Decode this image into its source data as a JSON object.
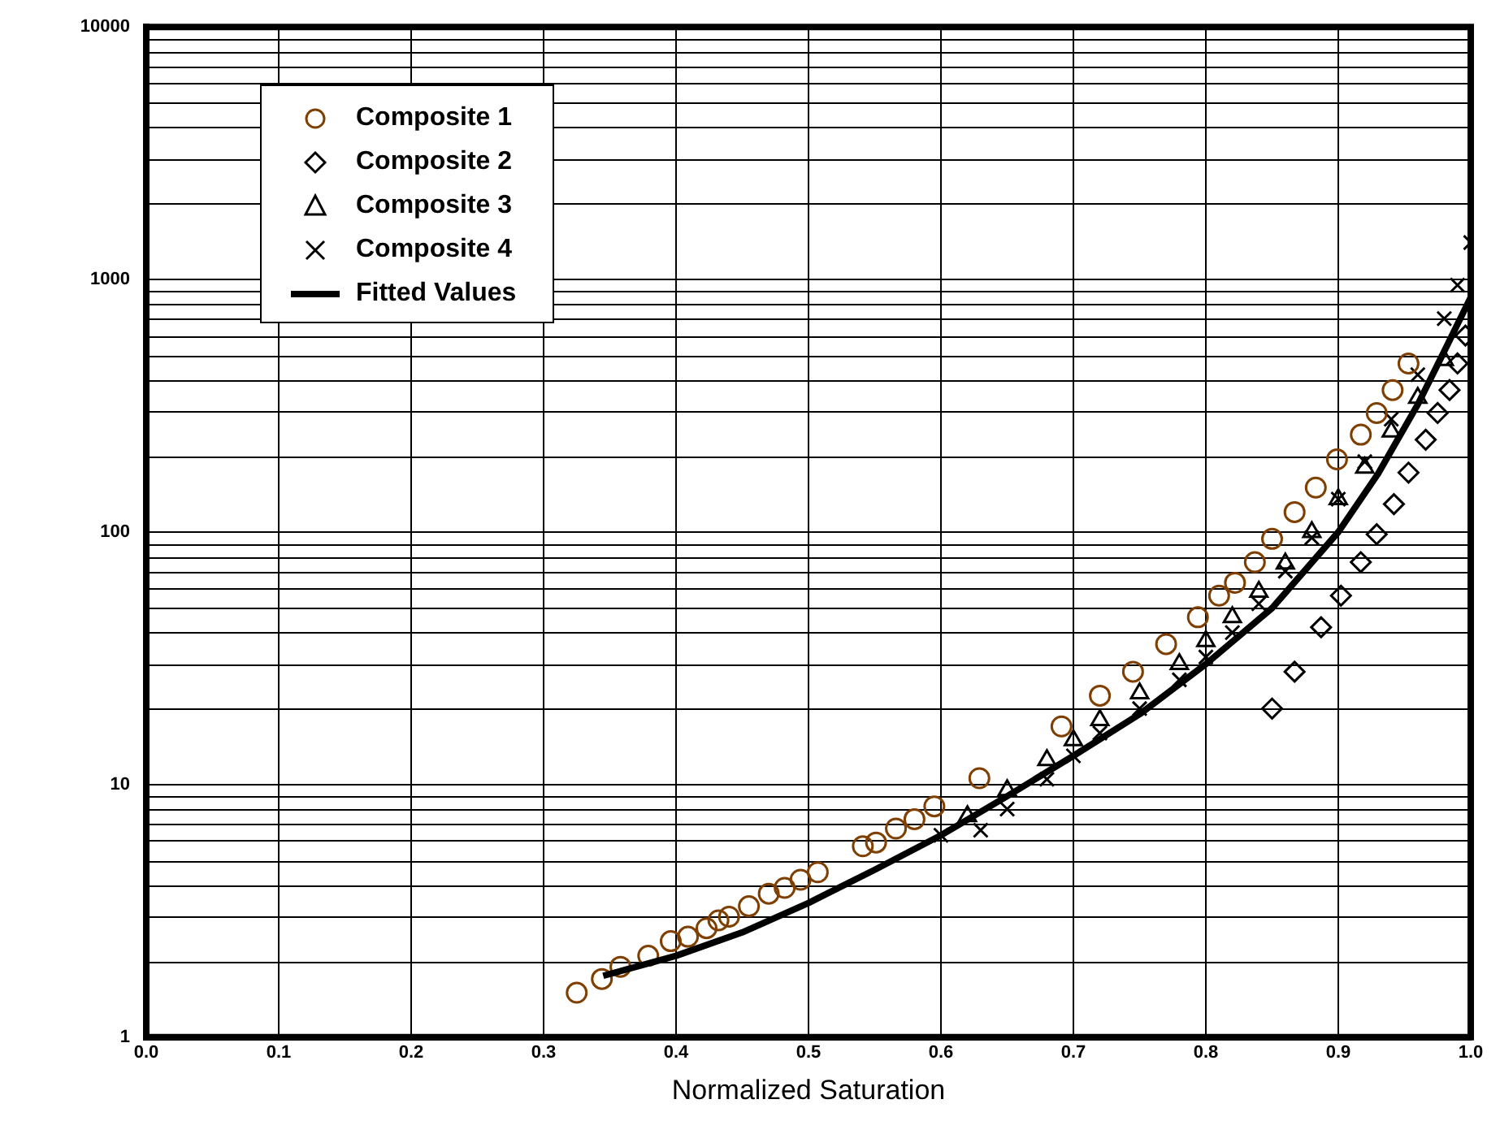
{
  "chart_data": {
    "type": "scatter",
    "xlabel": "Normalized Saturation",
    "log": "y",
    "grid": true,
    "legend": "top left",
    "xlim": [
      0,
      1
    ],
    "xticks": [
      {
        "value": 0,
        "label": "0.0"
      },
      {
        "value": 0.1,
        "label": "0.1"
      },
      {
        "value": 0.2,
        "label": "0.2"
      },
      {
        "value": 0.3,
        "label": "0.3"
      },
      {
        "value": 0.4,
        "label": "0.4"
      },
      {
        "value": 0.5,
        "label": "0.5"
      },
      {
        "value": 0.6,
        "label": "0.6"
      },
      {
        "value": 0.7,
        "label": "0.7"
      },
      {
        "value": 0.8,
        "label": "0.8"
      },
      {
        "value": 0.9,
        "label": "0.9"
      },
      {
        "value": 1,
        "label": "1.0"
      }
    ],
    "ylim": [
      1,
      10000
    ],
    "yticks": [
      1,
      10,
      100,
      1000,
      10000
    ],
    "series": [
      {
        "name": "Composite 1",
        "color": "#7f3f00",
        "marker": "circle",
        "x": [
          0.325,
          0.344,
          0.358,
          0.379,
          0.396,
          0.409,
          0.423,
          0.432,
          0.44,
          0.455,
          0.47,
          0.482,
          0.494,
          0.507,
          0.541,
          0.551,
          0.566,
          0.58,
          0.595,
          0.629,
          0.691,
          0.72,
          0.745,
          0.77,
          0.794,
          0.81,
          0.822,
          0.837,
          0.85,
          0.867,
          0.883,
          0.899,
          0.917,
          0.929,
          0.941,
          0.953
        ],
        "values": [
          1.5,
          1.7,
          1.9,
          2.1,
          2.4,
          2.5,
          2.7,
          2.9,
          3,
          3.3,
          3.7,
          3.9,
          4.2,
          4.5,
          5.7,
          5.9,
          6.7,
          7.3,
          8.2,
          10.6,
          17,
          22.5,
          28,
          36,
          46,
          56,
          63,
          76,
          94,
          120,
          150,
          194,
          243,
          296,
          365,
          465
        ]
      },
      {
        "name": "Composite 2",
        "color": "#000000",
        "marker": "diamond",
        "x": [
          0.85,
          0.867,
          0.887,
          0.902,
          0.917,
          0.929,
          0.942,
          0.953,
          0.966,
          0.975,
          0.984,
          0.99,
          0.996
        ],
        "values": [
          20,
          28,
          42,
          56,
          76,
          98,
          129,
          172,
          232,
          296,
          365,
          465,
          600
        ]
      },
      {
        "name": "Composite 3",
        "color": "#000000",
        "marker": "triangle",
        "x": [
          0.62,
          0.65,
          0.68,
          0.7,
          0.72,
          0.75,
          0.78,
          0.8,
          0.82,
          0.84,
          0.86,
          0.88,
          0.9,
          0.92,
          0.94,
          0.96,
          0.98
        ],
        "values": [
          7.5,
          9.5,
          12.5,
          15,
          18,
          23,
          30,
          37,
          46,
          58,
          75,
          100,
          135,
          180,
          250,
          340,
          480
        ]
      },
      {
        "name": "Composite 4",
        "color": "#000000",
        "marker": "cross",
        "x": [
          0.6,
          0.63,
          0.65,
          0.68,
          0.7,
          0.72,
          0.75,
          0.78,
          0.8,
          0.82,
          0.84,
          0.86,
          0.88,
          0.9,
          0.92,
          0.94,
          0.96,
          0.98,
          0.99,
          1
        ],
        "values": [
          6.3,
          6.6,
          8,
          10.5,
          13,
          16,
          20,
          26,
          32,
          40,
          52,
          70,
          95,
          135,
          190,
          280,
          420,
          700,
          950,
          1400
        ]
      },
      {
        "name": "Fitted Values",
        "color": "#000000",
        "type": "line",
        "marker": "none",
        "line_style": "solid",
        "x": [
          0.345,
          0.4,
          0.45,
          0.5,
          0.55,
          0.6,
          0.65,
          0.7,
          0.75,
          0.8,
          0.85,
          0.9,
          0.93,
          0.96,
          0.98,
          1
        ],
        "values": [
          1.75,
          2.1,
          2.6,
          3.4,
          4.6,
          6.3,
          9,
          13,
          19,
          30,
          50,
          100,
          170,
          320,
          520,
          850
        ]
      }
    ]
  }
}
